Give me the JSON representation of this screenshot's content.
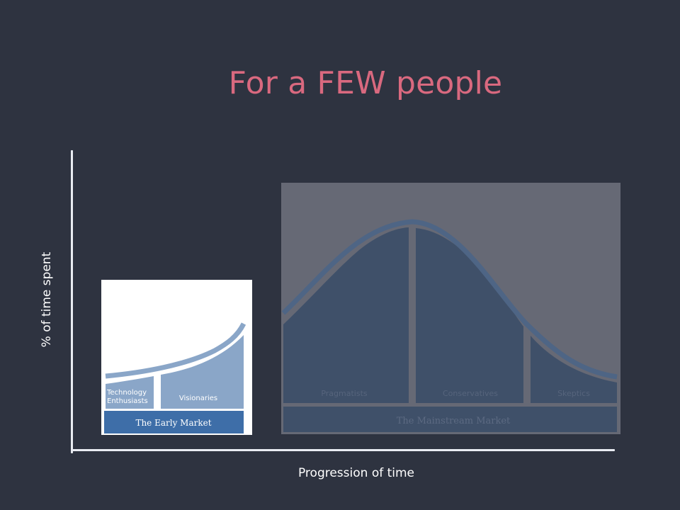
{
  "title": "For a FEW people",
  "axes": {
    "y_label": "% of time spent",
    "x_label": "Progression of time"
  },
  "early_market": {
    "label": "The Early Market",
    "segments": [
      "Technology Enthusiasts",
      "Visionaries"
    ],
    "segment_lines": [
      [
        "Technology",
        "Enthusiasts"
      ],
      [
        "Visionaries"
      ]
    ],
    "highlighted": true
  },
  "mainstream_market": {
    "label": "The Mainstream Market",
    "segments": [
      "Pragmatists",
      "Conservatives",
      "Skeptics"
    ],
    "dimmed": true
  },
  "colors": {
    "background": "#2e3340",
    "title": "#d9697f",
    "axis": "#e9ecf2",
    "market_bar": "#3e6ea8",
    "early_fill": "#8aa6c8",
    "main_overlay": "#666975",
    "main_fill": "#3f5069"
  }
}
